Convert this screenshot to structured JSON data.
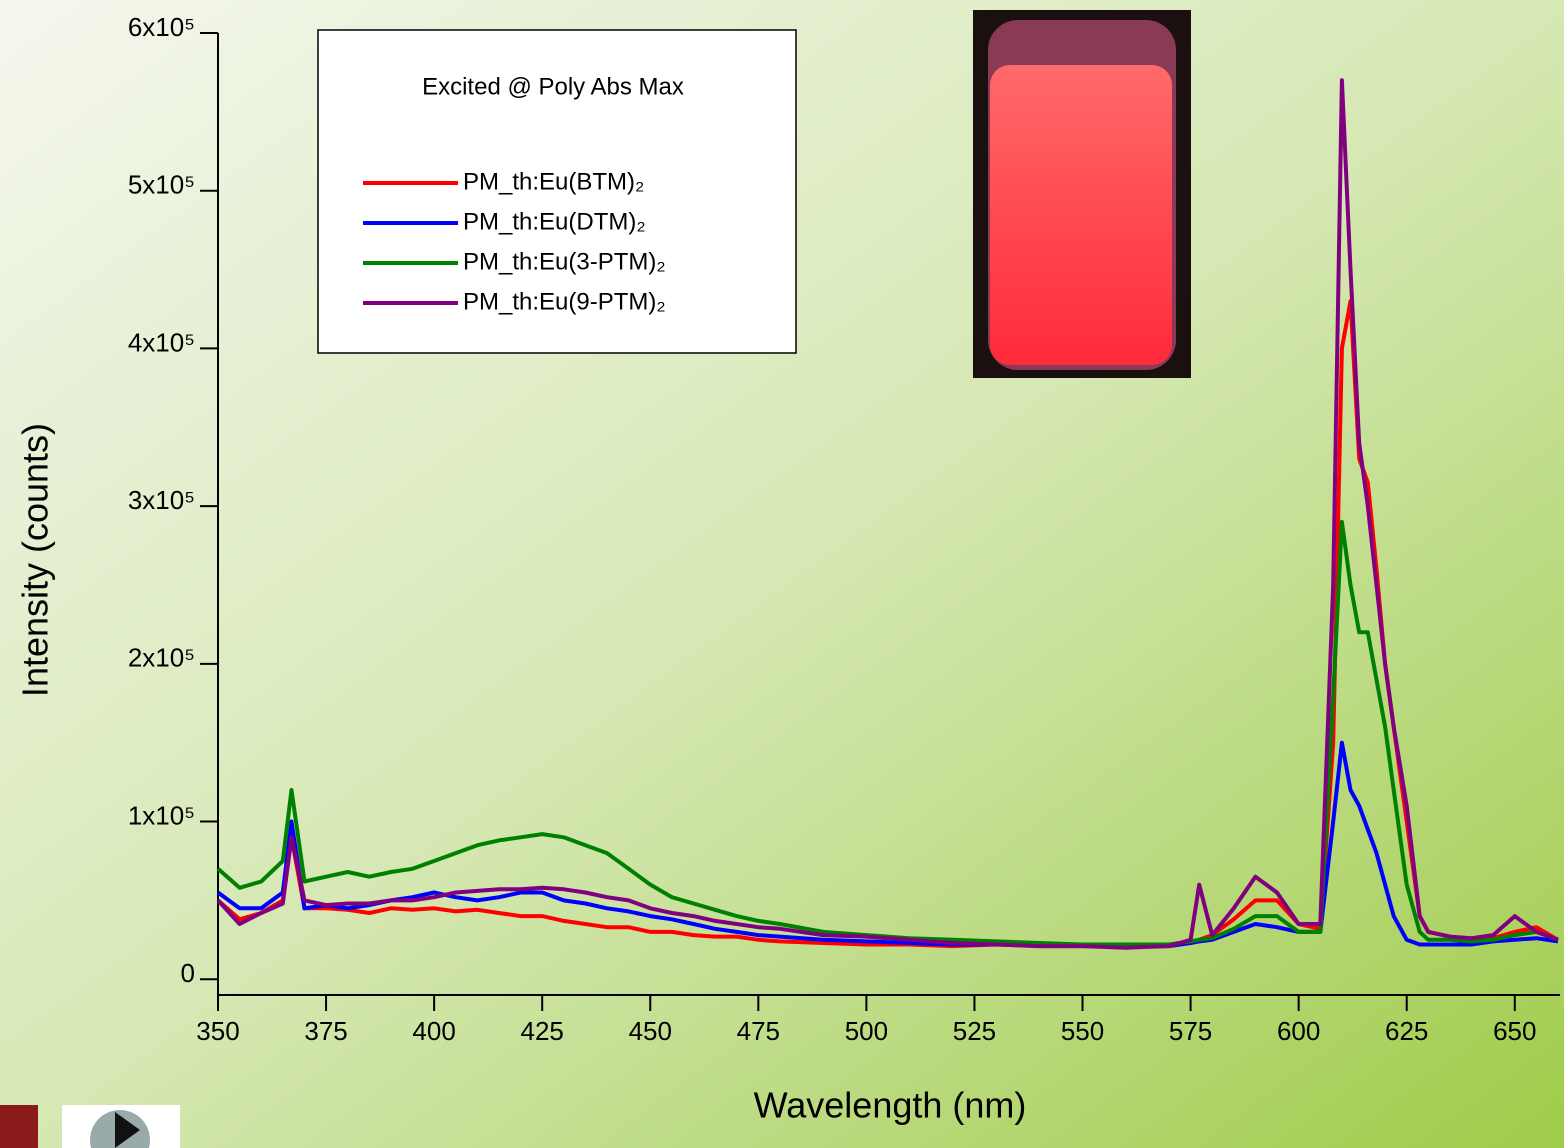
{
  "chart_data": {
    "type": "line",
    "xlabel": "Wavelength (nm)",
    "ylabel": "Intensity (counts)",
    "legend_title": "Excited @ Poly Abs Max",
    "legend": "upper left",
    "xlim": [
      350,
      660
    ],
    "ylim": [
      -10000,
      600000
    ],
    "xticks": [
      350,
      375,
      400,
      425,
      450,
      475,
      500,
      525,
      550,
      575,
      600,
      625,
      650
    ],
    "yticks": [
      0,
      {
        "value": 100000,
        "label": "1x10⁵"
      },
      {
        "value": 200000,
        "label": "2x10⁵"
      },
      {
        "value": 300000,
        "label": "3x10⁵"
      },
      {
        "value": 400000,
        "label": "4x10⁵"
      },
      {
        "value": 500000,
        "label": "5x10⁵"
      },
      {
        "value": 600000,
        "label": "6x10⁵"
      }
    ],
    "x": [
      350,
      355,
      360,
      365,
      367,
      370,
      375,
      380,
      385,
      390,
      395,
      400,
      405,
      410,
      415,
      420,
      425,
      430,
      435,
      440,
      445,
      450,
      455,
      460,
      465,
      470,
      475,
      480,
      490,
      500,
      510,
      520,
      530,
      540,
      550,
      560,
      570,
      575,
      577,
      580,
      585,
      590,
      595,
      600,
      605,
      608,
      610,
      612,
      614,
      616,
      618,
      620,
      622,
      625,
      628,
      630,
      635,
      640,
      645,
      650,
      655,
      660
    ],
    "series": [
      {
        "name": "PM_th:Eu(BTM)₂",
        "color": "#ff0000",
        "values": [
          50000,
          38000,
          42000,
          50000,
          90000,
          45000,
          45000,
          44000,
          42000,
          45000,
          44000,
          45000,
          43000,
          44000,
          42000,
          40000,
          40000,
          37000,
          35000,
          33000,
          33000,
          30000,
          30000,
          28000,
          27000,
          27000,
          25000,
          24000,
          23000,
          22000,
          22000,
          21000,
          22000,
          21000,
          21000,
          21000,
          22000,
          23000,
          25000,
          28000,
          38000,
          50000,
          50000,
          35000,
          32000,
          150000,
          400000,
          430000,
          330000,
          315000,
          260000,
          200000,
          160000,
          100000,
          40000,
          30000,
          27000,
          25000,
          26000,
          30000,
          33000,
          25000
        ]
      },
      {
        "name": "PM_th:Eu(DTM)₂",
        "color": "#0000ff",
        "values": [
          55000,
          45000,
          45000,
          55000,
          100000,
          45000,
          47000,
          45000,
          47000,
          50000,
          52000,
          55000,
          52000,
          50000,
          52000,
          55000,
          55000,
          50000,
          48000,
          45000,
          43000,
          40000,
          38000,
          35000,
          32000,
          30000,
          28000,
          27000,
          25000,
          24000,
          23000,
          22000,
          22000,
          22000,
          22000,
          21000,
          21000,
          23000,
          24000,
          25000,
          30000,
          35000,
          33000,
          30000,
          30000,
          100000,
          150000,
          120000,
          110000,
          95000,
          80000,
          60000,
          40000,
          25000,
          22000,
          22000,
          22000,
          22000,
          24000,
          25000,
          26000,
          24000
        ]
      },
      {
        "name": "PM_th:Eu(3-PTM)₂",
        "color": "#008000",
        "values": [
          70000,
          58000,
          62000,
          75000,
          120000,
          62000,
          65000,
          68000,
          65000,
          68000,
          70000,
          75000,
          80000,
          85000,
          88000,
          90000,
          92000,
          90000,
          85000,
          80000,
          70000,
          60000,
          52000,
          48000,
          44000,
          40000,
          37000,
          35000,
          30000,
          28000,
          26000,
          25000,
          24000,
          23000,
          22000,
          22000,
          22000,
          24000,
          25000,
          26000,
          32000,
          40000,
          40000,
          30000,
          30000,
          180000,
          290000,
          250000,
          220000,
          220000,
          190000,
          160000,
          120000,
          60000,
          30000,
          25000,
          25000,
          24000,
          25000,
          28000,
          30000,
          25000
        ]
      },
      {
        "name": "PM_th:Eu(9-PTM)₂",
        "color": "#800080",
        "values": [
          50000,
          35000,
          42000,
          48000,
          90000,
          50000,
          47000,
          48000,
          48000,
          50000,
          50000,
          52000,
          55000,
          56000,
          57000,
          57000,
          58000,
          57000,
          55000,
          52000,
          50000,
          45000,
          42000,
          40000,
          37000,
          35000,
          33000,
          32000,
          28000,
          27000,
          25000,
          23000,
          22000,
          21000,
          21000,
          20000,
          21000,
          25000,
          60000,
          28000,
          45000,
          65000,
          55000,
          35000,
          35000,
          250000,
          570000,
          450000,
          340000,
          300000,
          250000,
          200000,
          160000,
          110000,
          40000,
          30000,
          27000,
          26000,
          28000,
          40000,
          30000,
          25000
        ]
      }
    ]
  }
}
